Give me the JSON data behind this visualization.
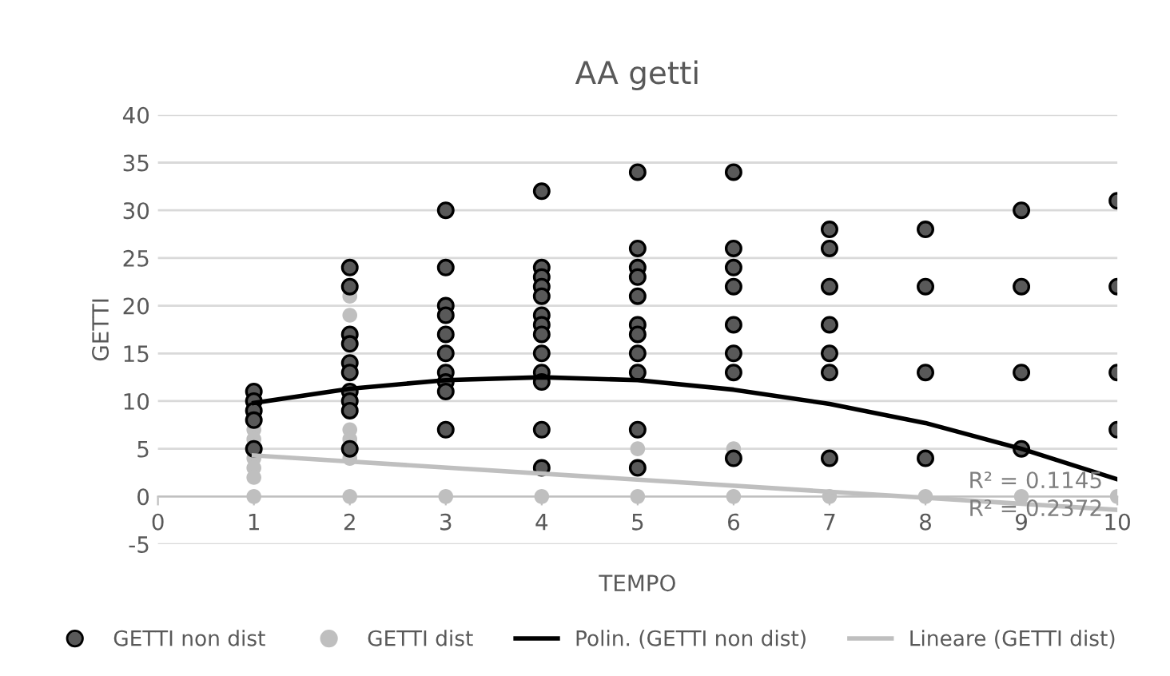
{
  "chart_data": {
    "type": "scatter",
    "title": "AA getti",
    "xlabel": "TEMPO",
    "ylabel": "GETTI",
    "series": [
      {
        "name": "GETTI non dist",
        "marker": "circle",
        "color": "#595959",
        "x": [
          1,
          1,
          1,
          1,
          1,
          2,
          2,
          2,
          2,
          2,
          2,
          2,
          2,
          2,
          2,
          3,
          3,
          3,
          3,
          3,
          3,
          3,
          3,
          3,
          3,
          4,
          4,
          4,
          4,
          4,
          4,
          4,
          4,
          4,
          4,
          4,
          4,
          4,
          5,
          5,
          5,
          5,
          5,
          5,
          5,
          5,
          5,
          5,
          5,
          6,
          6,
          6,
          6,
          6,
          6,
          6,
          6,
          7,
          7,
          7,
          7,
          7,
          7,
          7,
          8,
          8,
          8,
          8,
          9,
          9,
          9,
          9,
          10,
          10,
          10,
          10
        ],
        "values": [
          11,
          10,
          9,
          8,
          5,
          24,
          22,
          17,
          16,
          14,
          13,
          11,
          10,
          9,
          5,
          30,
          24,
          20,
          19,
          17,
          15,
          13,
          12,
          11,
          7,
          32,
          24,
          23,
          22,
          21,
          19,
          18,
          17,
          15,
          13,
          12,
          7,
          3,
          34,
          26,
          24,
          23,
          21,
          18,
          17,
          15,
          13,
          7,
          3,
          34,
          26,
          24,
          22,
          18,
          15,
          13,
          4,
          28,
          26,
          22,
          18,
          15,
          13,
          4,
          28,
          22,
          13,
          4,
          30,
          22,
          13,
          5,
          31,
          22,
          13,
          7
        ]
      },
      {
        "name": "GETTI dist",
        "marker": "circle",
        "color": "#bfbfbf",
        "x": [
          1,
          1,
          1,
          1,
          1,
          1,
          2,
          2,
          2,
          2,
          2,
          2,
          3,
          4,
          5,
          5,
          6,
          6,
          7,
          8,
          9,
          10
        ],
        "values": [
          7,
          6,
          4,
          3,
          2,
          0,
          21,
          19,
          7,
          6,
          4,
          0,
          0,
          0,
          5,
          0,
          5,
          0,
          0,
          0,
          0,
          0
        ]
      },
      {
        "name": "Polin. (GETTI non dist)",
        "type": "line",
        "color": "#000000",
        "x": [
          1,
          2,
          3,
          4,
          5,
          6,
          7,
          8,
          9,
          10
        ],
        "values": [
          9.8,
          11.3,
          12.2,
          12.5,
          12.2,
          11.2,
          9.7,
          7.7,
          5,
          1.8
        ]
      },
      {
        "name": "Lineare (GETTI dist)",
        "type": "line",
        "color": "#bfbfbf",
        "x": [
          1,
          10
        ],
        "values": [
          4.3,
          -1.4
        ]
      }
    ],
    "xlim": [
      0,
      10
    ],
    "xticks": [
      0,
      1,
      2,
      3,
      4,
      5,
      6,
      7,
      8,
      9,
      10
    ],
    "ylim": [
      -5,
      40
    ],
    "yticks": [
      -5,
      0,
      5,
      10,
      15,
      20,
      25,
      30,
      35,
      40
    ],
    "grid": "y",
    "legend": "bottom",
    "annotations": [
      "R² = 0.1145",
      "R² = 0.2372"
    ]
  }
}
